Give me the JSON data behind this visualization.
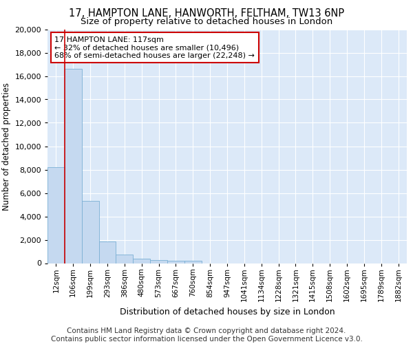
{
  "title_line1": "17, HAMPTON LANE, HANWORTH, FELTHAM, TW13 6NP",
  "title_line2": "Size of property relative to detached houses in London",
  "xlabel": "Distribution of detached houses by size in London",
  "ylabel": "Number of detached properties",
  "bar_color": "#c5d9f0",
  "bar_edge_color": "#7aafd4",
  "vline_color": "#cc0000",
  "vline_x": 0.5,
  "annotation_title": "17 HAMPTON LANE: 117sqm",
  "annotation_line2": "← 32% of detached houses are smaller (10,496)",
  "annotation_line3": "68% of semi-detached houses are larger (22,248) →",
  "annotation_box_color": "#ffffff",
  "annotation_box_edge": "#cc0000",
  "categories": [
    "12sqm",
    "106sqm",
    "199sqm",
    "293sqm",
    "386sqm",
    "480sqm",
    "573sqm",
    "667sqm",
    "760sqm",
    "854sqm",
    "947sqm",
    "1041sqm",
    "1134sqm",
    "1228sqm",
    "1321sqm",
    "1415sqm",
    "1508sqm",
    "1602sqm",
    "1695sqm",
    "1789sqm",
    "1882sqm"
  ],
  "values": [
    8200,
    16600,
    5300,
    1850,
    750,
    380,
    275,
    230,
    200,
    0,
    0,
    0,
    0,
    0,
    0,
    0,
    0,
    0,
    0,
    0,
    0
  ],
  "ylim": [
    0,
    20000
  ],
  "yticks": [
    0,
    2000,
    4000,
    6000,
    8000,
    10000,
    12000,
    14000,
    16000,
    18000,
    20000
  ],
  "background_color": "#dce9f8",
  "footer_line1": "Contains HM Land Registry data © Crown copyright and database right 2024.",
  "footer_line2": "Contains public sector information licensed under the Open Government Licence v3.0.",
  "title_fontsize": 10.5,
  "subtitle_fontsize": 9.5,
  "footer_fontsize": 7.5,
  "ylabel_fontsize": 8.5,
  "xlabel_fontsize": 9
}
